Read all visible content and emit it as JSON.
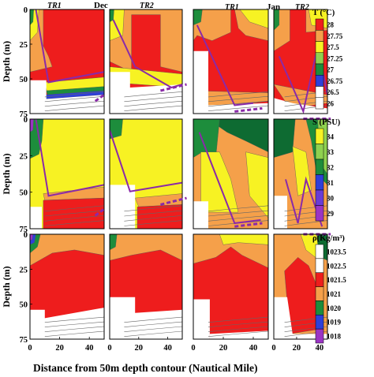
{
  "months": [
    "Dec",
    "Jan"
  ],
  "panel_titles": [
    [
      "TR1",
      "TR2"
    ],
    [
      "TR1",
      "TR2"
    ]
  ],
  "ylabel": "Depth (m)",
  "xlabel": "Distance from 50m depth contour (Nautical Mile)",
  "colors": {
    "red": "#ee1d1d",
    "orange": "#f5a04a",
    "yellow": "#f7f223",
    "lightgreen": "#8fd14f",
    "green": "#1d8d3c",
    "darkgreen": "#0e6b32",
    "blue": "#2f3fd8",
    "purple": "#9b34c4",
    "line": "#8a2aa8"
  },
  "chart_data": [
    {
      "type": "heatmap",
      "variable": "Temperature",
      "colorbar_title": "T (°C)",
      "levels": [
        "28",
        "27.75",
        "27.5",
        "27.25",
        "27",
        "26.75",
        "26.5",
        "26"
      ],
      "ylim": [
        75,
        0
      ],
      "xlim": [
        0,
        50
      ],
      "yticks": [
        0,
        25,
        50,
        75
      ],
      "xticks": [
        0,
        20,
        40
      ],
      "panels": [
        {
          "month": "Dec",
          "transect": "TR1",
          "dominant": "28",
          "mixed_layer_depth_m": [
            [
              10,
              58
            ],
            [
              20,
              55
            ],
            [
              35,
              50
            ],
            [
              45,
              47
            ]
          ]
        },
        {
          "month": "Dec",
          "transect": "TR2",
          "dominant": "28",
          "mixed_layer_depth_m": [
            [
              5,
              10
            ],
            [
              15,
              50
            ],
            [
              30,
              57
            ],
            [
              45,
              55
            ]
          ]
        },
        {
          "month": "Jan",
          "transect": "TR1",
          "dominant": "28",
          "mixed_layer_depth_m": [
            [
              7,
              15
            ],
            [
              25,
              65
            ],
            [
              35,
              72
            ],
            [
              45,
              70
            ]
          ]
        },
        {
          "month": "Jan",
          "transect": "TR2",
          "dominant": "28",
          "mixed_layer_depth_m": [
            [
              15,
              40
            ],
            [
              28,
              70
            ],
            [
              38,
              25
            ],
            [
              45,
              65
            ]
          ]
        }
      ]
    },
    {
      "type": "heatmap",
      "variable": "Salinity",
      "colorbar_title": "S (PSU)",
      "levels": [
        "34",
        "33",
        "32",
        "31",
        "30",
        "29"
      ],
      "ylim": [
        75,
        0
      ],
      "xlim": [
        0,
        50
      ],
      "yticks": [
        0,
        25,
        50,
        75
      ],
      "xticks": [
        0,
        20,
        40
      ],
      "panels": [
        {
          "month": "Dec",
          "transect": "TR1",
          "dominant": "34"
        },
        {
          "month": "Dec",
          "transect": "TR2",
          "dominant": "34"
        },
        {
          "month": "Jan",
          "transect": "TR1",
          "dominant": "33"
        },
        {
          "month": "Jan",
          "transect": "TR2",
          "dominant": "33"
        }
      ]
    },
    {
      "type": "heatmap",
      "variable": "Density",
      "colorbar_title": "ρ(Kg/m³)",
      "levels": [
        "1023.5",
        "1022.5",
        "1021.5",
        "1021",
        "1020",
        "1019",
        "1018"
      ],
      "ylim": [
        75,
        0
      ],
      "xlim": [
        0,
        50
      ],
      "yticks": [
        0,
        25,
        50,
        75
      ],
      "xticks": [
        0,
        20,
        40
      ],
      "panels": [
        {
          "month": "Dec",
          "transect": "TR1",
          "dominant": "1021.5"
        },
        {
          "month": "Dec",
          "transect": "TR2",
          "dominant": "1021.5"
        },
        {
          "month": "Jan",
          "transect": "TR1",
          "dominant": "1021.5"
        },
        {
          "month": "Jan",
          "transect": "TR2",
          "dominant": "1021.5"
        }
      ]
    }
  ]
}
